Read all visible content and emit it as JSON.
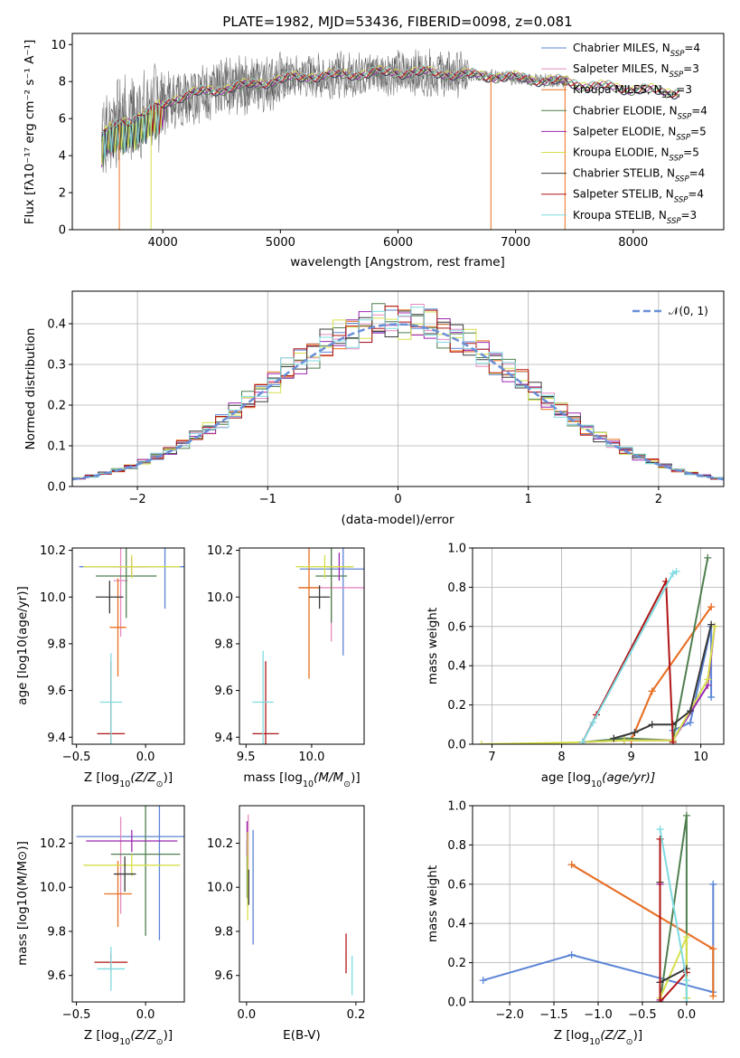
{
  "colors": {
    "Chabrier MILES": "#5b84d6",
    "Salpeter MILES": "#e88ac0",
    "Kroupa MILES": "#e8701f",
    "Chabrier ELODIE": "#4f7f4f",
    "Salpeter ELODIE": "#9b27b0",
    "Kroupa ELODIE": "#d6e04a",
    "Chabrier STELIB": "#3a3a3a",
    "Salpeter STELIB": "#b01515",
    "Kroupa STELIB": "#7fdbe0",
    "normal_curve": "#6a8fd8",
    "grid": "#b0b0b0"
  },
  "chart_data": [
    {
      "type": "line",
      "title": "PLATE=1982, MJD=53436, FIBERID=0098, z=0.081",
      "xlabel": "wavelength [Angstrom, rest frame]",
      "ylabel": "Flux [fλ10⁻¹⁷ erg cm⁻² s⁻¹ A⁻¹]",
      "xlim": [
        3230,
        8770
      ],
      "ylim": [
        0,
        10.6
      ],
      "xticks": [
        4000,
        5000,
        6000,
        7000,
        8000
      ],
      "yticks": [
        0,
        2,
        4,
        6,
        8,
        10
      ],
      "legend_placement": "right",
      "legend": [
        {
          "name": "Chabrier MILES",
          "label": "Chabrier MILES, N",
          "sub": "SSP",
          "tail": "=4"
        },
        {
          "name": "Salpeter MILES",
          "label": "Salpeter MILES, N",
          "sub": "SSP",
          "tail": "=3"
        },
        {
          "name": "Kroupa MILES",
          "label": "Kroupa MILES, N",
          "sub": "SSP",
          "tail": "=3"
        },
        {
          "name": "Chabrier ELODIE",
          "label": "Chabrier ELODIE, N",
          "sub": "SSP",
          "tail": "=4"
        },
        {
          "name": "Salpeter ELODIE",
          "label": "Salpeter ELODIE, N",
          "sub": "SSP",
          "tail": "=5"
        },
        {
          "name": "Kroupa ELODIE",
          "label": "Kroupa ELODIE, N",
          "sub": "SSP",
          "tail": "=5"
        },
        {
          "name": "Chabrier STELIB",
          "label": "Chabrier STELIB, N",
          "sub": "SSP",
          "tail": "=4"
        },
        {
          "name": "Salpeter STELIB",
          "label": "Salpeter STELIB, N",
          "sub": "SSP",
          "tail": "=4"
        },
        {
          "name": "Kroupa STELIB",
          "label": "Kroupa STELIB, N",
          "sub": "SSP",
          "tail": "=3"
        }
      ],
      "continuum_x": [
        3480,
        3550,
        3650,
        3750,
        3850,
        3950,
        4050,
        4150,
        4300,
        4500,
        4700,
        4900,
        5100,
        5300,
        5600,
        5900,
        6200,
        6500,
        6800,
        7000,
        7200,
        7400,
        7600,
        7800,
        8000,
        8200,
        8400
      ],
      "continuum_y": [
        5.0,
        5.5,
        5.8,
        6.0,
        6.3,
        6.6,
        6.9,
        7.2,
        7.4,
        7.6,
        7.8,
        8.0,
        8.2,
        8.3,
        8.4,
        8.5,
        8.5,
        8.4,
        8.3,
        8.2,
        8.1,
        8.0,
        7.8,
        7.7,
        7.6,
        7.5,
        7.4
      ],
      "dips": [
        {
          "series": "Kroupa MILES",
          "x": 3630,
          "y": 0
        },
        {
          "series": "Kroupa ELODIE",
          "x": 3900,
          "y": 0
        },
        {
          "series": "Kroupa MILES",
          "x": 6790,
          "y": 0
        },
        {
          "series": "Kroupa MILES",
          "x": 7420,
          "y": 0
        }
      ]
    },
    {
      "type": "histogram",
      "xlabel": "(data-model)/error",
      "ylabel": "Normed distribution",
      "xlim": [
        -2.5,
        2.5
      ],
      "ylim": [
        0,
        0.48
      ],
      "xticks": [
        -2,
        -1,
        0,
        1,
        2
      ],
      "yticks": [
        0.0,
        0.1,
        0.2,
        0.3,
        0.4
      ],
      "grid": true,
      "legend_placement": "top-right",
      "reference_curve": {
        "name": "𝒩(0, 1)",
        "mean": 0,
        "sigma": 1
      },
      "bin_width": 0.1,
      "bin_start": -2.5
    },
    {
      "type": "scatter",
      "xlabel_text": "Z [log",
      "xlabel_sub": "10",
      "xlabel_tail": "(Z/Z",
      "xlabel_end": ")]",
      "ylabel": "age  [log10(age/yr)]",
      "xlim": [
        -0.53,
        0.28
      ],
      "ylim": [
        9.37,
        10.21
      ],
      "xticks": [
        -0.5,
        0.0
      ],
      "yticks": [
        9.4,
        9.6,
        9.8,
        10.0,
        10.2
      ],
      "points": [
        {
          "series": "Chabrier MILES",
          "x": 0.14,
          "y": 10.13,
          "xerr": 0.62,
          "yerr": 0.18
        },
        {
          "series": "Salpeter MILES",
          "x": -0.18,
          "y": 10.07,
          "xerr": 0.05,
          "yerr": 0.24
        },
        {
          "series": "Kroupa MILES",
          "x": -0.2,
          "y": 9.87,
          "xerr": 0.06,
          "yerr": 0.21
        },
        {
          "series": "Chabrier ELODIE",
          "x": -0.14,
          "y": 10.09,
          "xerr": 0.22,
          "yerr": 0.18
        },
        {
          "series": "Salpeter ELODIE",
          "x": -0.1,
          "y": 10.13,
          "xerr": 0.13,
          "yerr": 0.04
        },
        {
          "series": "Kroupa ELODIE",
          "x": -0.1,
          "y": 10.13,
          "xerr": 0.35,
          "yerr": 0.05
        },
        {
          "series": "Chabrier STELIB",
          "x": -0.26,
          "y": 10.0,
          "xerr": 0.1,
          "yerr": 0.07
        },
        {
          "series": "Salpeter STELIB",
          "x": -0.25,
          "y": 9.415,
          "xerr": 0.1,
          "yerr": 0.31
        },
        {
          "series": "Kroupa STELIB",
          "x": -0.25,
          "y": 9.55,
          "xerr": 0.08,
          "yerr": 0.21
        }
      ]
    },
    {
      "type": "scatter",
      "xlabel_text": "mass [log",
      "xlabel_sub": "10",
      "xlabel_tail": "(M/M",
      "xlabel_end": ")]",
      "ylabel": "",
      "xlim": [
        9.45,
        10.4
      ],
      "ylim": [
        9.37,
        10.21
      ],
      "xticks": [
        9.5,
        10.0
      ],
      "yticks": [
        9.4,
        9.6,
        9.8,
        10.0,
        10.2
      ],
      "points": [
        {
          "series": "Chabrier MILES",
          "x": 10.24,
          "y": 10.12,
          "xerr": 0.33,
          "yerr": 0.37
        },
        {
          "series": "Salpeter MILES",
          "x": 10.15,
          "y": 10.04,
          "xerr": 0.25,
          "yerr": 0.23
        },
        {
          "series": "Kroupa MILES",
          "x": 9.98,
          "y": 10.04,
          "xerr": 0.08,
          "yerr": 0.39
        },
        {
          "series": "Chabrier ELODIE",
          "x": 10.15,
          "y": 10.09,
          "xerr": 0.12,
          "yerr": 0.2
        },
        {
          "series": "Salpeter ELODIE",
          "x": 10.21,
          "y": 10.13,
          "xerr": 0.1,
          "yerr": 0.06
        },
        {
          "series": "Kroupa ELODIE",
          "x": 10.1,
          "y": 10.13,
          "xerr": 0.22,
          "yerr": 0.05
        },
        {
          "series": "Chabrier STELIB",
          "x": 10.06,
          "y": 10.0,
          "xerr": 0.08,
          "yerr": 0.05
        },
        {
          "series": "Salpeter STELIB",
          "x": 9.65,
          "y": 9.415,
          "xerr": 0.1,
          "yerr": 0.31
        },
        {
          "series": "Kroupa STELIB",
          "x": 9.63,
          "y": 9.55,
          "xerr": 0.08,
          "yerr": 0.22
        }
      ]
    },
    {
      "type": "line",
      "xlabel_text": "age  [log",
      "xlabel_sub": "10",
      "xlabel_tail": "(age/yr)]",
      "ylabel": "mass weight",
      "xlim": [
        6.72,
        10.33
      ],
      "ylim": [
        0,
        1.0
      ],
      "xticks": [
        7,
        8,
        9,
        10
      ],
      "yticks": [
        0.0,
        0.2,
        0.4,
        0.6,
        0.8,
        1.0
      ],
      "grid": true,
      "series": [
        {
          "name": "Chabrier MILES",
          "x": [
            9.6,
            9.85,
            10.15,
            10.15
          ],
          "y": [
            0.07,
            0.11,
            0.6,
            0.24
          ]
        },
        {
          "name": "Salpeter MILES",
          "x": [
            9.0,
            9.3,
            10.15
          ],
          "y": [
            0.02,
            0.27,
            0.7
          ]
        },
        {
          "name": "Kroupa MILES",
          "x": [
            9.0,
            9.3,
            10.15
          ],
          "y": [
            0.02,
            0.27,
            0.7
          ]
        },
        {
          "name": "Chabrier ELODIE",
          "x": [
            8.3,
            8.9,
            9.6,
            10.1
          ],
          "y": [
            0.01,
            0.03,
            0.02,
            0.95
          ]
        },
        {
          "name": "Salpeter ELODIE",
          "x": [
            8.3,
            8.9,
            9.6,
            10.1,
            10.2
          ],
          "y": [
            0.01,
            0.02,
            0.02,
            0.3,
            0.6
          ]
        },
        {
          "name": "Kroupa ELODIE",
          "x": [
            6.85,
            8.3,
            8.9,
            9.6,
            10.1,
            10.2
          ],
          "y": [
            0.0,
            0.01,
            0.02,
            0.02,
            0.33,
            0.6
          ]
        },
        {
          "name": "Chabrier STELIB",
          "x": [
            8.75,
            9.05,
            9.3,
            9.6,
            9.85,
            10.15
          ],
          "y": [
            0.03,
            0.06,
            0.1,
            0.1,
            0.17,
            0.61
          ]
        },
        {
          "name": "Salpeter STELIB",
          "x": [
            8.3,
            8.5,
            9.5,
            9.6
          ],
          "y": [
            0.01,
            0.15,
            0.83,
            0.01
          ]
        },
        {
          "name": "Kroupa STELIB",
          "x": [
            8.3,
            8.45,
            9.6,
            9.65
          ],
          "y": [
            0.01,
            0.11,
            0.87,
            0.88
          ]
        }
      ]
    },
    {
      "type": "scatter",
      "xlabel_text": "Z [log",
      "xlabel_sub": "10",
      "xlabel_tail": "(Z/Z",
      "xlabel_end": ")]",
      "ylabel": "mass [log10(M/M⊙)]",
      "xlim": [
        -0.53,
        0.28
      ],
      "ylim": [
        9.48,
        10.37
      ],
      "xticks": [
        -0.5,
        0.0
      ],
      "yticks": [
        9.6,
        9.8,
        10.0,
        10.2
      ],
      "points": [
        {
          "series": "Chabrier MILES",
          "x": 0.1,
          "y": 10.23,
          "xerr": 0.6,
          "yerr": 0.47
        },
        {
          "series": "Salpeter MILES",
          "x": -0.18,
          "y": 10.1,
          "xerr": 0.05,
          "yerr": 0.22
        },
        {
          "series": "Kroupa MILES",
          "x": -0.2,
          "y": 9.97,
          "xerr": 0.1,
          "yerr": 0.15
        },
        {
          "series": "Chabrier ELODIE",
          "x": 0.0,
          "y": 10.15,
          "xerr": 0.25,
          "yerr": 0.37
        },
        {
          "series": "Salpeter ELODIE",
          "x": -0.1,
          "y": 10.21,
          "xerr": 0.33,
          "yerr": 0.05
        },
        {
          "series": "Kroupa ELODIE",
          "x": -0.1,
          "y": 10.1,
          "xerr": 0.35,
          "yerr": 0.05
        },
        {
          "series": "Chabrier STELIB",
          "x": -0.15,
          "y": 10.06,
          "xerr": 0.08,
          "yerr": 0.08
        },
        {
          "series": "Salpeter STELIB",
          "x": -0.25,
          "y": 9.66,
          "xerr": 0.12,
          "yerr": 0.04
        },
        {
          "series": "Kroupa STELIB",
          "x": -0.25,
          "y": 9.63,
          "xerr": 0.1,
          "yerr": 0.1
        }
      ]
    },
    {
      "type": "scatter",
      "xlabel": "E(B-V)",
      "ylabel": "",
      "xlim": [
        -0.013,
        0.215
      ],
      "ylim": [
        9.48,
        10.37
      ],
      "xticks": [
        0.0,
        0.2
      ],
      "yticks": [
        9.6,
        9.8,
        10.0,
        10.2
      ],
      "points": [
        {
          "series": "Chabrier MILES",
          "x": 0.012,
          "y": 10.0,
          "xerr": 0,
          "yerr": 0.26
        },
        {
          "series": "Salpeter MILES",
          "x": 0.003,
          "y": 10.2,
          "xerr": 0,
          "yerr": 0.13
        },
        {
          "series": "Kroupa MILES",
          "x": 0.002,
          "y": 10.05,
          "xerr": 0,
          "yerr": 0.1
        },
        {
          "series": "Chabrier ELODIE",
          "x": 0.001,
          "y": 10.08,
          "xerr": 0,
          "yerr": 0.13
        },
        {
          "series": "Salpeter ELODIE",
          "x": 0.001,
          "y": 10.22,
          "xerr": 0,
          "yerr": 0.08
        },
        {
          "series": "Kroupa ELODIE",
          "x": 0.002,
          "y": 10.05,
          "xerr": 0,
          "yerr": 0.2
        },
        {
          "series": "Chabrier STELIB",
          "x": 0.004,
          "y": 10.0,
          "xerr": 0,
          "yerr": 0.08
        },
        {
          "series": "Salpeter STELIB",
          "x": 0.182,
          "y": 9.7,
          "xerr": 0,
          "yerr": 0.09
        },
        {
          "series": "Kroupa STELIB",
          "x": 0.193,
          "y": 9.6,
          "xerr": 0,
          "yerr": 0.09
        }
      ]
    },
    {
      "type": "line",
      "xlabel_text": "Z [log",
      "xlabel_sub": "10",
      "xlabel_tail": "(Z/Z",
      "xlabel_end": ")]",
      "ylabel": "mass weight",
      "xlim": [
        -2.42,
        0.42
      ],
      "ylim": [
        0,
        1.0
      ],
      "xticks": [
        -2.0,
        -1.5,
        -1.0,
        -0.5,
        0.0
      ],
      "yticks": [
        0.0,
        0.2,
        0.4,
        0.6,
        0.8,
        1.0
      ],
      "grid": true,
      "series": [
        {
          "name": "Chabrier MILES",
          "x": [
            -2.3,
            -1.3,
            0.3,
            0.3
          ],
          "y": [
            0.11,
            0.24,
            0.05,
            0.6
          ]
        },
        {
          "name": "Salpeter MILES",
          "x": [
            -1.3,
            0.3
          ],
          "y": [
            0.7,
            0.27
          ]
        },
        {
          "name": "Kroupa MILES",
          "x": [
            -1.3,
            0.3,
            0.3
          ],
          "y": [
            0.7,
            0.27,
            0.03
          ]
        },
        {
          "name": "Chabrier ELODIE",
          "x": [
            -0.3,
            0.0,
            0.0
          ],
          "y": [
            0.0,
            0.95,
            0.02
          ]
        },
        {
          "name": "Salpeter ELODIE",
          "x": [
            -0.3,
            -0.3
          ],
          "y": [
            0.01,
            0.6
          ]
        },
        {
          "name": "Kroupa ELODIE",
          "x": [
            -0.3,
            0.0,
            0.0
          ],
          "y": [
            0.02,
            0.33,
            0.02
          ]
        },
        {
          "name": "Chabrier STELIB",
          "x": [
            -0.3,
            -0.3,
            0.0
          ],
          "y": [
            0.61,
            0.1,
            0.17
          ]
        },
        {
          "name": "Salpeter STELIB",
          "x": [
            -0.3,
            -0.3,
            0.0
          ],
          "y": [
            0.83,
            0.0,
            0.15
          ]
        },
        {
          "name": "Kroupa STELIB",
          "x": [
            -0.3,
            0.0,
            0.0
          ],
          "y": [
            0.88,
            0.11,
            0.0
          ]
        }
      ]
    }
  ]
}
